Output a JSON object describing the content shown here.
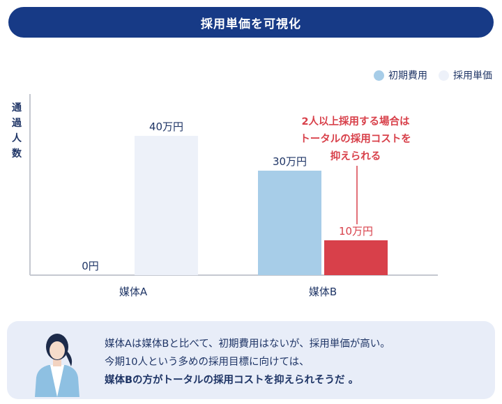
{
  "header": {
    "title": "採用単価を可視化"
  },
  "chart_data": {
    "type": "bar",
    "categories": [
      "媒体A",
      "媒体B"
    ],
    "series": [
      {
        "name": "初期費用",
        "color": "#a7cde8",
        "values": [
          0,
          30
        ],
        "labels": [
          "0円",
          "30万円"
        ]
      },
      {
        "name": "採用単価",
        "color": "#edf1f9",
        "values": [
          40,
          null
        ],
        "labels": [
          "40万円",
          ""
        ]
      }
    ],
    "highlight": {
      "category": "媒体B",
      "value": 10,
      "label": "10万円",
      "color": "#d8404a"
    },
    "ylabel": "通過人数",
    "annotation": "2人以上採用する場合は\nトータルの採用コストを\n抑えられる",
    "legend_position": "top-right",
    "grid": false,
    "ylim": [
      0,
      50
    ]
  },
  "note": {
    "line1": "媒体Aは媒体Bと比べて、初期費用はないが、採用単価が高い。",
    "line2": "今期10人という多めの採用目標に向けては、",
    "line3": "媒体Bの方がトータルの採用コストを抑えられそうだ 。"
  }
}
